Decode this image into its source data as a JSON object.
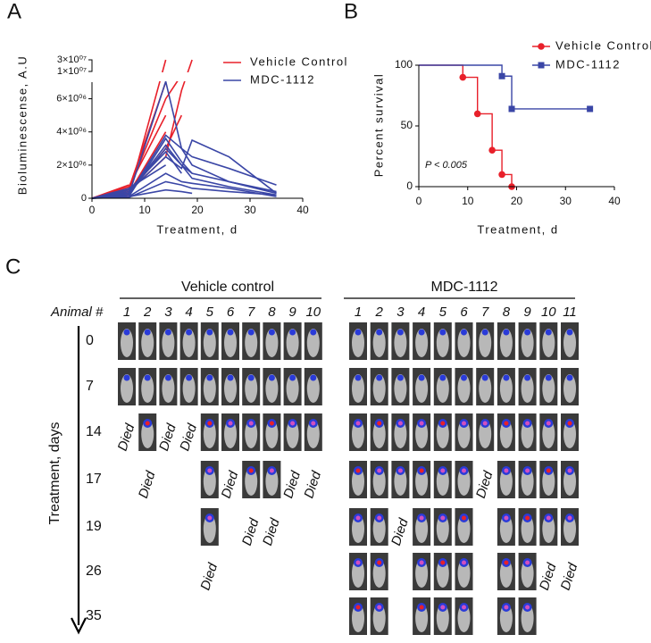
{
  "panel_labels": [
    "A",
    "B",
    "C"
  ],
  "chart_data": [
    {
      "type": "line",
      "ylabel": "Bioluminescense, A.U",
      "xlabel": "Treatment, d",
      "x": [
        0,
        7,
        14,
        17,
        19,
        26,
        35
      ],
      "xlim": [
        0,
        40
      ],
      "xticks": [
        0,
        10,
        20,
        30,
        40
      ],
      "ylim": [
        0,
        30000000
      ],
      "ysegments": [
        [
          0,
          7000000
        ],
        [
          10000000,
          30000000
        ]
      ],
      "yticks": [
        0,
        {
          "value": 2000000,
          "label": "2×10⁰⁶"
        },
        {
          "value": 4000000,
          "label": "4×10⁰⁶"
        },
        {
          "value": 6000000,
          "label": "6×10⁰⁶"
        },
        {
          "value": 10000000,
          "label": "1×10⁰⁷"
        },
        {
          "value": 30000000,
          "label": "3×10⁰⁷"
        }
      ],
      "series": [
        {
          "name": "Vehicle Control",
          "color": "#e8202a",
          "lines": [
            [
              0,
              500000,
              null,
              null,
              null,
              null,
              null
            ],
            [
              0,
              300000,
              4000000,
              null,
              null,
              null,
              null
            ],
            [
              0,
              200000,
              null,
              null,
              null,
              null,
              null
            ],
            [
              0,
              800000,
              null,
              null,
              null,
              null,
              null
            ],
            [
              0,
              400000,
              2500000,
              6500000,
              30000000,
              null,
              null
            ],
            [
              0,
              600000,
              7000000,
              null,
              null,
              null,
              null
            ],
            [
              0,
              300000,
              3000000,
              5000000,
              null,
              null,
              null
            ],
            [
              0,
              500000,
              6000000,
              9000000,
              null,
              null,
              null
            ],
            [
              0,
              700000,
              5000000,
              null,
              null,
              null,
              null
            ],
            [
              0,
              200000,
              30000000,
              null,
              null,
              null,
              null
            ]
          ]
        },
        {
          "name": "MDC-1112",
          "color": "#3a46a6",
          "lines": [
            [
              0,
              200000,
              3800000,
              3000000,
              2500000,
              1800000,
              800000
            ],
            [
              0,
              100000,
              3600000,
              2200000,
              1500000,
              1000000,
              300000
            ],
            [
              0,
              500000,
              2800000,
              1500000,
              null,
              null,
              null
            ],
            [
              0,
              300000,
              3200000,
              2000000,
              1200000,
              700000,
              200000
            ],
            [
              0,
              100000,
              1500000,
              1000000,
              900000,
              600000,
              100000
            ],
            [
              0,
              200000,
              7200000,
              3000000,
              2000000,
              1000000,
              400000
            ],
            [
              0,
              600000,
              2000000,
              null,
              null,
              null,
              null
            ],
            [
              0,
              50000,
              1000000,
              800000,
              600000,
              400000,
              200000
            ],
            [
              0,
              400000,
              2500000,
              1800000,
              3500000,
              2500000,
              300000
            ],
            [
              0,
              100000,
              500000,
              400000,
              300000,
              null,
              null
            ],
            [
              0,
              300000,
              3000000,
              2000000,
              1500000,
              null,
              null
            ]
          ]
        }
      ]
    },
    {
      "type": "survival",
      "ylabel": "Percent survival",
      "xlabel": "Treatment, d",
      "annotation": "P  < 0.005",
      "xlim": [
        0,
        40
      ],
      "xticks": [
        0,
        10,
        20,
        30,
        40
      ],
      "ylim": [
        0,
        100
      ],
      "yticks": [
        0,
        50,
        100
      ],
      "series": [
        {
          "name": "Vehicle Control",
          "color": "#e8202a",
          "marker": "circle",
          "x": [
            0,
            9,
            12,
            15,
            17,
            19
          ],
          "values": [
            100,
            90,
            60,
            30,
            10,
            0
          ]
        },
        {
          "name": "MDC-1112",
          "color": "#3a46a6",
          "marker": "square",
          "x": [
            0,
            17,
            19,
            35
          ],
          "values": [
            100,
            91,
            64,
            64
          ]
        }
      ]
    }
  ],
  "imaging": {
    "animal_label": "Animal #",
    "axis_label": "Treatment, days",
    "days": [
      0,
      7,
      14,
      17,
      19,
      26,
      35
    ],
    "groups": [
      {
        "title": "Vehicle control",
        "animals": [
          1,
          2,
          3,
          4,
          5,
          6,
          7,
          8,
          9,
          10
        ],
        "cells": [
          [
            null,
            null,
            null,
            null,
            null,
            null,
            null,
            null,
            null,
            null
          ],
          [
            null,
            null,
            null,
            null,
            null,
            null,
            null,
            null,
            null,
            null
          ],
          [
            "Died",
            null,
            "Died",
            "Died",
            null,
            null,
            null,
            null,
            null,
            null
          ],
          [
            null,
            "Died",
            null,
            null,
            null,
            "Died",
            null,
            null,
            "Died",
            "Died"
          ],
          [
            null,
            null,
            null,
            null,
            null,
            null,
            "Died",
            "Died",
            null,
            null
          ],
          [
            null,
            null,
            null,
            null,
            "Died",
            null,
            null,
            null,
            null,
            null
          ],
          [
            null,
            null,
            null,
            null,
            null,
            null,
            null,
            null,
            null,
            null
          ]
        ]
      },
      {
        "title": "MDC-1112",
        "animals": [
          1,
          2,
          3,
          4,
          5,
          6,
          7,
          8,
          9,
          10,
          11
        ],
        "cells": [
          [
            null,
            null,
            null,
            null,
            null,
            null,
            null,
            null,
            null,
            null,
            null
          ],
          [
            null,
            null,
            null,
            null,
            null,
            null,
            null,
            null,
            null,
            null,
            null
          ],
          [
            null,
            null,
            null,
            null,
            null,
            null,
            null,
            null,
            null,
            null,
            null
          ],
          [
            null,
            null,
            null,
            null,
            null,
            null,
            "Died",
            null,
            null,
            null,
            null
          ],
          [
            null,
            null,
            "Died",
            null,
            null,
            null,
            null,
            null,
            null,
            null,
            null
          ],
          [
            null,
            null,
            null,
            null,
            null,
            null,
            null,
            null,
            null,
            "Died",
            "Died"
          ],
          [
            null,
            null,
            null,
            null,
            null,
            null,
            null,
            null,
            null,
            null,
            null
          ]
        ]
      }
    ]
  }
}
